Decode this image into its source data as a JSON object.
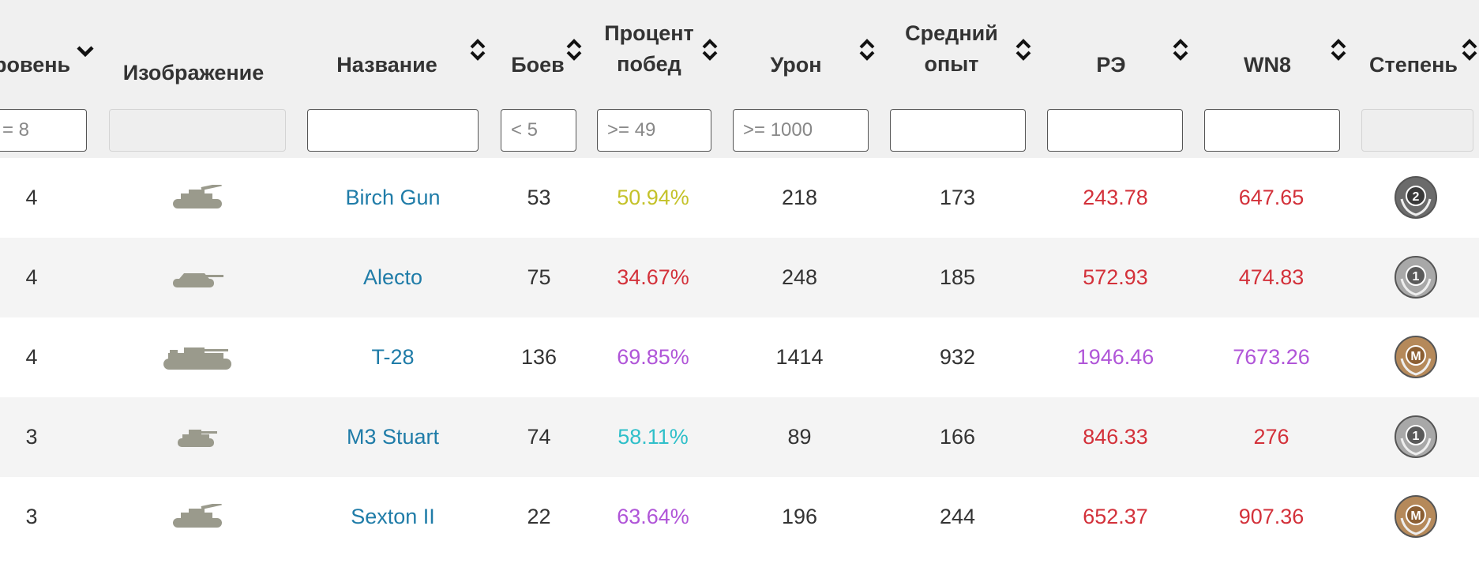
{
  "colors": {
    "link": "#1f7ca8",
    "wr_yellow": "#c4c22a",
    "wr_red": "#d3313a",
    "wr_purple": "#b055d8",
    "wr_teal": "#2fbfc9",
    "stat_red": "#d3313a",
    "stat_purple": "#b055d8"
  },
  "columns": [
    {
      "key": "level",
      "label": "ровень",
      "sort_icon": "chevron-down-icon"
    },
    {
      "key": "image",
      "label": "Изображение"
    },
    {
      "key": "name",
      "label": "Название",
      "sort_icon": "sort-icon"
    },
    {
      "key": "battles",
      "label": "Боев",
      "sort_icon": "sort-icon"
    },
    {
      "key": "winrate",
      "label_line1": "Процент",
      "label_line2": "побед",
      "sort_icon": "sort-icon"
    },
    {
      "key": "damage",
      "label": "Урон",
      "sort_icon": "sort-icon"
    },
    {
      "key": "avg_xp",
      "label_line1": "Средний",
      "label_line2": "опыт",
      "sort_icon": "sort-icon"
    },
    {
      "key": "re",
      "label": "РЭ",
      "sort_icon": "sort-icon"
    },
    {
      "key": "wn8",
      "label": "WN8",
      "sort_icon": "sort-icon"
    },
    {
      "key": "mastery",
      "label": "Степень",
      "sort_icon": "sort-icon"
    }
  ],
  "filters": {
    "level": "= 8",
    "name": "",
    "battles": "< 5",
    "winrate": ">= 49",
    "damage": ">= 1000",
    "avg_xp": "",
    "re": "",
    "wn8": ""
  },
  "rows": [
    {
      "level": "4",
      "tank_icon": "spg-icon",
      "name": "Birch Gun",
      "battles": "53",
      "winrate": "50.94%",
      "winrate_color": "#c4c22a",
      "damage": "218",
      "avg_xp": "173",
      "re": "243.78",
      "re_color": "#d3313a",
      "wn8": "647.65",
      "wn8_color": "#d3313a",
      "mastery": "2",
      "mastery_icon": "mastery-2-badge-icon"
    },
    {
      "level": "4",
      "tank_icon": "td-icon",
      "name": "Alecto",
      "battles": "75",
      "winrate": "34.67%",
      "winrate_color": "#d3313a",
      "damage": "248",
      "avg_xp": "185",
      "re": "572.93",
      "re_color": "#d3313a",
      "wn8": "474.83",
      "wn8_color": "#d3313a",
      "mastery": "1",
      "mastery_icon": "mastery-1-badge-icon"
    },
    {
      "level": "4",
      "tank_icon": "medium-tank-icon",
      "name": "T-28",
      "battles": "136",
      "winrate": "69.85%",
      "winrate_color": "#b055d8",
      "damage": "1414",
      "avg_xp": "932",
      "re": "1946.46",
      "re_color": "#b055d8",
      "wn8": "7673.26",
      "wn8_color": "#b055d8",
      "mastery": "M",
      "mastery_icon": "mastery-ace-badge-icon"
    },
    {
      "level": "3",
      "tank_icon": "light-tank-icon",
      "name": "M3 Stuart",
      "battles": "74",
      "winrate": "58.11%",
      "winrate_color": "#2fbfc9",
      "damage": "89",
      "avg_xp": "166",
      "re": "846.33",
      "re_color": "#d3313a",
      "wn8": "276",
      "wn8_color": "#d3313a",
      "mastery": "1",
      "mastery_icon": "mastery-1-badge-icon"
    },
    {
      "level": "3",
      "tank_icon": "spg-icon",
      "name": "Sexton II",
      "battles": "22",
      "winrate": "63.64%",
      "winrate_color": "#b055d8",
      "damage": "196",
      "avg_xp": "244",
      "re": "652.37",
      "re_color": "#d3313a",
      "wn8": "907.36",
      "wn8_color": "#d3313a",
      "mastery": "M",
      "mastery_icon": "mastery-ace-badge-icon"
    }
  ]
}
